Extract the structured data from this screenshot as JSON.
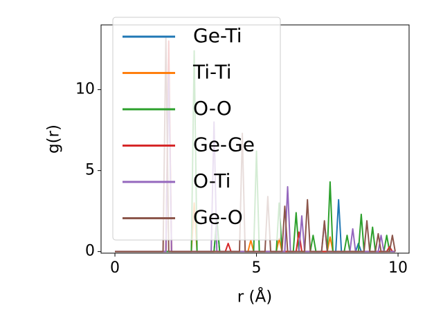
{
  "chart_data": {
    "type": "line",
    "xlabel": "r (Å)",
    "ylabel": "g(r)",
    "xlim": [
      -0.49,
      10.39
    ],
    "ylim": [
      -0.1,
      14
    ],
    "xticks": [
      0,
      5,
      10
    ],
    "yticks": [
      0,
      5,
      10
    ],
    "legend": "upper left",
    "x": [
      0,
      0.1,
      0.2,
      0.3,
      0.4,
      0.5,
      0.6,
      0.7,
      0.8,
      0.9,
      1,
      1.1,
      1.2,
      1.3,
      1.4,
      1.5,
      1.6,
      1.7,
      1.8,
      1.9,
      2,
      2.1,
      2.2,
      2.3,
      2.4,
      2.5,
      2.6,
      2.7,
      2.8,
      2.9,
      3,
      3.1,
      3.2,
      3.3,
      3.4,
      3.5,
      3.6,
      3.7,
      3.8,
      3.9,
      4,
      4.1,
      4.2,
      4.3,
      4.4,
      4.5,
      4.6,
      4.7,
      4.8,
      4.9,
      5,
      5.1,
      5.2,
      5.3,
      5.4,
      5.5,
      5.6,
      5.7,
      5.8,
      5.9,
      6,
      6.1,
      6.2,
      6.3,
      6.4,
      6.5,
      6.6,
      6.7,
      6.8,
      6.9,
      7,
      7.1,
      7.2,
      7.3,
      7.4,
      7.5,
      7.6,
      7.7,
      7.8,
      7.9,
      8,
      8.1,
      8.2,
      8.3,
      8.4,
      8.5,
      8.6,
      8.7,
      8.8,
      8.9,
      9,
      9.1,
      9.2,
      9.3,
      9.4,
      9.5,
      9.6,
      9.7,
      9.8,
      9.9
    ],
    "series": [
      {
        "name": "Ge-Ti",
        "color": "#1f77b4",
        "values": [
          0,
          0,
          0,
          0,
          0,
          0,
          0,
          0,
          0,
          0,
          0,
          0,
          0,
          0,
          0,
          0,
          0,
          0,
          0,
          0,
          0,
          0,
          0,
          0,
          0,
          0,
          0,
          0,
          0,
          0,
          0,
          0,
          0,
          0,
          0,
          0,
          2,
          0,
          0,
          0,
          0,
          0,
          0,
          0,
          0,
          0,
          0,
          0,
          0,
          0,
          0,
          0,
          0,
          0,
          0,
          0,
          0,
          0,
          0,
          0,
          0,
          0,
          0,
          0,
          0,
          0,
          0,
          0,
          0,
          0,
          0,
          0,
          0,
          0,
          0,
          0,
          0,
          0,
          0,
          3.2,
          0,
          0,
          0,
          0,
          0,
          0,
          0.5,
          0,
          0,
          0,
          0,
          0,
          0,
          0,
          0,
          0,
          0,
          0,
          0,
          0
        ]
      },
      {
        "name": "Ti-Ti",
        "color": "#ff7f0e",
        "values": [
          0,
          0,
          0,
          0,
          0,
          0,
          0,
          0,
          0,
          0,
          0,
          0,
          0,
          0,
          0,
          0,
          0,
          0,
          0,
          12,
          0,
          0,
          0,
          0,
          0,
          0,
          0,
          0,
          3,
          0,
          0,
          0,
          0,
          0,
          0,
          0,
          0,
          0,
          0,
          0,
          0,
          0,
          0,
          0,
          0,
          0,
          0,
          0,
          0.7,
          0,
          0,
          0,
          0,
          0,
          0,
          0,
          0,
          0,
          0.8,
          0,
          0,
          0,
          0,
          0,
          0,
          0,
          0,
          0,
          0,
          0,
          0,
          0,
          0,
          0,
          0,
          0,
          0.9,
          0,
          0,
          0,
          0,
          0,
          0,
          0,
          0,
          0,
          0,
          0,
          0,
          0,
          0,
          0,
          0,
          0,
          0,
          0,
          0,
          0,
          0,
          0
        ]
      },
      {
        "name": "O-O",
        "color": "#2ca02c",
        "values": [
          0,
          0,
          0,
          0,
          0,
          0,
          0,
          0,
          0,
          0,
          0,
          0,
          0,
          0,
          0,
          0,
          0,
          0,
          0,
          0,
          0,
          0,
          0,
          0,
          0,
          0,
          0,
          0,
          12.4,
          0,
          0,
          0,
          0,
          0,
          0,
          0,
          2,
          0,
          0,
          0,
          0,
          0,
          0,
          0,
          0,
          0,
          0,
          0,
          0,
          0,
          6.2,
          0,
          0,
          0,
          0,
          0,
          0,
          0,
          3,
          0,
          0,
          0,
          0,
          0,
          2.4,
          0,
          0,
          0,
          0,
          0,
          1,
          0,
          0,
          0,
          0,
          0,
          4.3,
          0,
          0,
          0,
          0,
          0,
          1,
          0,
          0,
          0,
          0,
          2.3,
          0,
          0,
          0,
          1.5,
          0,
          0,
          0,
          0,
          1,
          0,
          0,
          0
        ]
      },
      {
        "name": "Ge-Ge",
        "color": "#d62728",
        "values": [
          0,
          0,
          0,
          0,
          0,
          0,
          0,
          0,
          0,
          0,
          0,
          0,
          0,
          0,
          0,
          0,
          0,
          0,
          0,
          13,
          0,
          0,
          0,
          0,
          0,
          0,
          0,
          0,
          0,
          0,
          0,
          0,
          0,
          0,
          0,
          0,
          0,
          0,
          0,
          0,
          0.5,
          0,
          0,
          0,
          0,
          0,
          0,
          0,
          0,
          0,
          0,
          0,
          0,
          0,
          0,
          0,
          0,
          0,
          0,
          0,
          0,
          0,
          0,
          0,
          0,
          1.2,
          0,
          0,
          0,
          0,
          0,
          0,
          0,
          0,
          0,
          0,
          0,
          0,
          0,
          0,
          0,
          0,
          0,
          0,
          0,
          0,
          0,
          0,
          0,
          0,
          0,
          0,
          0,
          0,
          0,
          0,
          0,
          0.3,
          0,
          0
        ]
      },
      {
        "name": "O-Ti",
        "color": "#9467bd",
        "values": [
          0,
          0,
          0,
          0,
          0,
          0,
          0,
          0,
          0,
          0,
          0,
          0,
          0,
          0,
          0,
          0,
          0,
          0,
          0,
          11,
          0,
          0,
          0,
          0,
          0,
          0,
          0,
          0,
          0,
          0,
          0,
          0,
          0,
          0,
          0,
          8,
          0,
          0,
          0,
          0,
          0,
          0,
          0,
          0,
          0,
          0,
          0,
          0,
          0,
          0,
          0,
          0,
          0,
          0,
          0,
          0,
          0,
          0,
          0,
          0,
          0,
          4,
          0,
          0,
          0,
          0,
          2.2,
          0,
          0,
          0,
          0,
          0,
          0,
          0,
          1.8,
          0,
          0,
          0,
          0,
          0,
          0,
          0,
          0,
          0,
          1.4,
          0,
          0,
          0,
          0,
          0,
          0,
          0,
          0,
          0,
          1,
          0,
          0,
          0,
          0,
          0
        ]
      },
      {
        "name": "Ge-O",
        "color": "#8c564b",
        "values": [
          0,
          0,
          0,
          0,
          0,
          0,
          0,
          0,
          0,
          0,
          0,
          0,
          0,
          0,
          0,
          0,
          0,
          0,
          13.2,
          0,
          0,
          0,
          0,
          0,
          0,
          0,
          0,
          0,
          0,
          0,
          0,
          0,
          0,
          0,
          0,
          0,
          0,
          0,
          0,
          0,
          0,
          0,
          0,
          0,
          0,
          7.3,
          0,
          0,
          0,
          0,
          0,
          0,
          0,
          0,
          3.4,
          0,
          0,
          0,
          0,
          0,
          2.8,
          0,
          0,
          0,
          0,
          0,
          0,
          0,
          3.2,
          0,
          0,
          0,
          0,
          0,
          1.9,
          0,
          0,
          0,
          0,
          0,
          0,
          0,
          0,
          0,
          0,
          0,
          0,
          0,
          0,
          1.9,
          0,
          0,
          0,
          1.1,
          0,
          0,
          0,
          0,
          1,
          0
        ]
      }
    ]
  }
}
